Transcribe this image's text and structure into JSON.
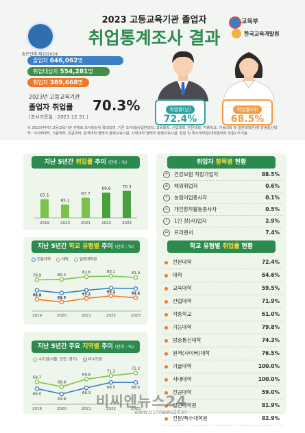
{
  "header": {
    "subtitle": "2023 고등교육기관 졸업자",
    "title": "취업통계조사 결과",
    "ministry": "교육부",
    "institute": "한국교육개발원",
    "emblem_label": "숨은인재 제102024호"
  },
  "stats": {
    "graduates_label": "졸업자",
    "graduates_value": "646,062",
    "target_label": "취업대상자",
    "target_value": "554,281",
    "employed_label": "취업자",
    "employed_value": "389,668",
    "unit": "명",
    "rate_caption": "2023년 고등교육기관",
    "rate_label": "졸업자 취업률",
    "rate_value": "70.3%",
    "survey_date": "(조사기준일 : 2023.12.31.)"
  },
  "gender": {
    "male_label": "취업률(남)",
    "male_value": "72.4%",
    "female_label": "취업률(여)",
    "female_value": "68.5%"
  },
  "footnote": "※ 2023년부터 고등교육기관 전체로 조사대상이 확대되며, 기존 조사대상(일반대학, 교육대학, 산업대학, 전문대학, 각종학교, 기능대학 및 일반대학원)에 방송통신대학, 사이버대학, 기술대학, 전공대학, 원격대학 형태의 평생교육시설, 사내대학 형태의 평생교육시설, 전문 및 특수대학원(대학원대학 포함) 추가됨.",
  "colors": {
    "green": "#2c8a4e",
    "orange": "#f07a2b",
    "blue": "#3d7fc4",
    "male": "#2aa3a0",
    "female": "#f39a3d"
  },
  "chart_data": [
    {
      "type": "bar",
      "title_pre": "지난 5년간 ",
      "title_hl": "취업률",
      "title_post": " 추이",
      "unit": "(단위 : %)",
      "categories": [
        "2019",
        "2020",
        "2021",
        "2022",
        "2023"
      ],
      "values": [
        67.1,
        65.1,
        67.7,
        69.6,
        70.3
      ],
      "labels": [
        "67.1",
        "65.1",
        "67.7",
        "69.6",
        "70.3"
      ]
    },
    {
      "type": "line",
      "title_pre": "지난 5년간 ",
      "title_hl": "학교 유형별",
      "title_post": " 추이",
      "unit": "(단위 : %)",
      "categories": [
        "2019",
        "2020",
        "2021",
        "2022",
        "2023"
      ],
      "series": [
        {
          "name": "전문대학",
          "values": [
            70.9,
            68.7,
            71.0,
            72.9,
            72.4
          ],
          "labels": [
            "70.9",
            "68.7",
            "71.0",
            "72.9",
            "72.4"
          ]
        },
        {
          "name": "대학",
          "values": [
            63.3,
            61.0,
            64.1,
            66.3,
            64.6
          ],
          "labels": [
            "63.3",
            "61.0",
            "64.1",
            "66.3",
            "64.6"
          ]
        },
        {
          "name": "일반대학원",
          "values": [
            79.9,
            80.2,
            82.6,
            83.1,
            81.9
          ],
          "labels": [
            "79.9",
            "80.2",
            "82.6",
            "83.1",
            "81.9"
          ]
        }
      ]
    },
    {
      "type": "line",
      "title_pre": "지난 5년간 주요 ",
      "title_hl": "지역별",
      "title_post": " 추이",
      "unit": "(단위 : %)",
      "categories": [
        "2019",
        "2020",
        "2021",
        "2022",
        "2023"
      ],
      "series": [
        {
          "name": "수도권(서울, 인천, 경기)",
          "values": [
            68.7,
            66.8,
            69.8,
            71.2,
            72.2
          ],
          "labels": [
            "68.7",
            "66.8",
            "69.8",
            "71.2",
            "72.2"
          ]
        },
        {
          "name": "비수도권",
          "values": [
            66.0,
            63.9,
            66.3,
            68.5,
            68.5
          ],
          "labels": [
            "66.0",
            "63.9",
            "66.3",
            "68.5",
            "68.5"
          ]
        }
      ]
    },
    {
      "type": "table",
      "title_pre": "취업자 ",
      "title_hl": "항목별",
      "title_post": " 현황",
      "rows": [
        {
          "name": "건강보험 직장가입자",
          "value": "88.5%"
        },
        {
          "name": "해외취업자",
          "value": "0.6%"
        },
        {
          "name": "농림어업종사자",
          "value": "0.1%"
        },
        {
          "name": "개인창작활동종사자",
          "value": "0.5%"
        },
        {
          "name": "1인 창(사)업자",
          "value": "2.9%"
        },
        {
          "name": "프리랜서",
          "value": "7.4%"
        }
      ]
    },
    {
      "type": "table",
      "title_pre": "학교 유형별 ",
      "title_hl": "취업률",
      "title_post": " 현황",
      "rows": [
        {
          "name": "전문대학",
          "value": "72.4%"
        },
        {
          "name": "대학",
          "value": "64.6%"
        },
        {
          "name": "교육대학",
          "value": "59.5%"
        },
        {
          "name": "산업대학",
          "value": "71.9%"
        },
        {
          "name": "각종학교",
          "value": "61.0%"
        },
        {
          "name": "기능대학",
          "value": "79.8%"
        },
        {
          "name": "방송통신대학",
          "value": "74.3%"
        },
        {
          "name": "원격(사이버)대학",
          "value": "76.5%"
        },
        {
          "name": "기술대학",
          "value": "100.0%"
        },
        {
          "name": "사내대학",
          "value": "100.0%"
        },
        {
          "name": "전공대학",
          "value": "59.0%"
        },
        {
          "name": "일반대학원",
          "value": "81.9%"
        },
        {
          "name": "전문/특수대학원",
          "value": "82.9%"
        }
      ]
    }
  ],
  "watermark": {
    "name": "비씨엔뉴스24",
    "url": "www.bcnnews24.kr"
  }
}
